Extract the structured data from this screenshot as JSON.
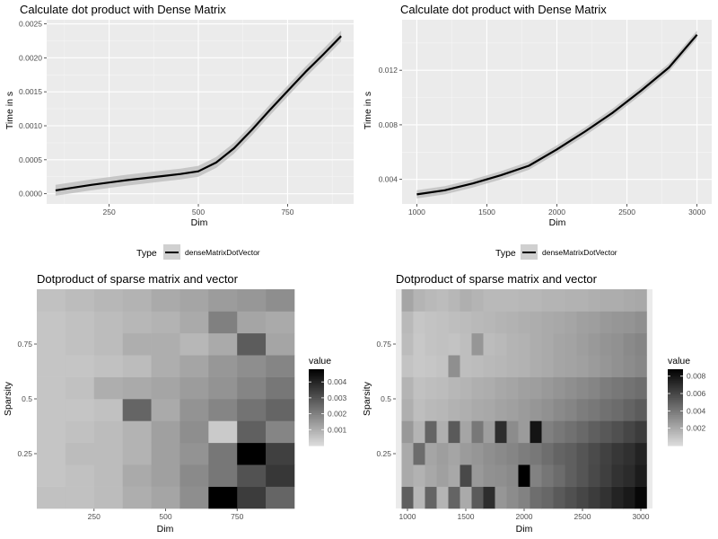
{
  "chart_data": [
    {
      "type": "line",
      "title": "Calculate dot product with Dense Matrix",
      "xlabel": "Dim",
      "ylabel": "Time in s",
      "xlim": [
        75,
        935
      ],
      "ylim": [
        -0.00015,
        0.00256
      ],
      "xticks": [
        250,
        500,
        750
      ],
      "yticks": [
        0,
        0.0005,
        0.001,
        0.0015,
        0.002,
        0.0025
      ],
      "ytick_labels": [
        "0.0000",
        "0.0005",
        "0.0010",
        "0.0015",
        "0.0020",
        "0.0025"
      ],
      "grid": true,
      "legend": {
        "title": "Type",
        "position": "bottom",
        "entries": [
          "denseMatrixDotVector"
        ]
      },
      "series": [
        {
          "name": "denseMatrixDotVector",
          "x": [
            100,
            200,
            300,
            400,
            450,
            500,
            550,
            600,
            650,
            700,
            750,
            800,
            850,
            900
          ],
          "y": [
            5e-05,
            0.00013,
            0.0002,
            0.00026,
            0.00029,
            0.00033,
            0.00046,
            0.00067,
            0.00094,
            0.00123,
            0.00151,
            0.00179,
            0.00205,
            0.00232
          ],
          "ci_halfwidth": 8e-05
        }
      ]
    },
    {
      "type": "line",
      "title": "Calculate dot product with Dense Matrix",
      "xlabel": "Dim",
      "ylabel": "Time in s",
      "xlim": [
        895,
        3105
      ],
      "ylim": [
        0.0022,
        0.0157
      ],
      "xticks": [
        1000,
        1500,
        2000,
        2500,
        3000
      ],
      "yticks": [
        0.004,
        0.008,
        0.012
      ],
      "ytick_labels": [
        "0.004",
        "0.008",
        "0.012"
      ],
      "grid": true,
      "legend": {
        "title": "Type",
        "position": "bottom",
        "entries": [
          "denseMatrixDotVector"
        ]
      },
      "series": [
        {
          "name": "denseMatrixDotVector",
          "x": [
            1000,
            1200,
            1400,
            1600,
            1800,
            2000,
            2200,
            2400,
            2600,
            2800,
            3000
          ],
          "y": [
            0.0029,
            0.0032,
            0.0037,
            0.0043,
            0.005,
            0.0062,
            0.0075,
            0.0089,
            0.0105,
            0.0122,
            0.0146
          ],
          "ci_halfwidth": 0.0003
        }
      ]
    },
    {
      "type": "heatmap",
      "title": "Dotproduct of sparse matrix and vector",
      "xlabel": "Dim",
      "ylabel": "Sparsity",
      "xlim": [
        50,
        950
      ],
      "ylim": [
        0,
        1
      ],
      "xticks": [
        250,
        500,
        750
      ],
      "yticks": [
        0.25,
        0.5,
        0.75
      ],
      "legend": {
        "title": "value",
        "position": "right",
        "breaks": [
          0.001,
          0.002,
          0.003,
          0.004
        ],
        "range": [
          0,
          0.0048
        ]
      },
      "x": [
        100,
        200,
        300,
        400,
        500,
        600,
        700,
        800,
        900
      ],
      "y": [
        0.05,
        0.15,
        0.25,
        0.35,
        0.45,
        0.55,
        0.65,
        0.75,
        0.85,
        0.95
      ],
      "values": [
        [
          0.0006,
          0.0006,
          0.0007,
          0.001,
          0.0012,
          0.0017,
          0.0048,
          0.0035,
          0.0026
        ],
        [
          0.0005,
          0.0006,
          0.0007,
          0.0011,
          0.0013,
          0.0018,
          0.0022,
          0.003,
          0.0036
        ],
        [
          0.0005,
          0.0007,
          0.0007,
          0.0009,
          0.0013,
          0.0016,
          0.0022,
          0.0048,
          0.0034
        ],
        [
          0.0005,
          0.0006,
          0.0007,
          0.0009,
          0.0013,
          0.0017,
          0.0004,
          0.0027,
          0.0019
        ],
        [
          0.0005,
          0.0005,
          0.0006,
          0.0026,
          0.0011,
          0.0016,
          0.0019,
          0.0023,
          0.0026
        ],
        [
          0.0005,
          0.0006,
          0.001,
          0.0011,
          0.0012,
          0.0014,
          0.0016,
          0.0019,
          0.0022
        ],
        [
          0.0005,
          0.0005,
          0.0006,
          0.0007,
          0.001,
          0.0012,
          0.0015,
          0.0017,
          0.0019
        ],
        [
          0.0005,
          0.0006,
          0.0007,
          0.001,
          0.001,
          0.0008,
          0.0011,
          0.0028,
          0.0012
        ],
        [
          0.0005,
          0.0006,
          0.0007,
          0.0008,
          0.0009,
          0.0011,
          0.002,
          0.0012,
          0.0011
        ],
        [
          0.0006,
          0.0007,
          0.0008,
          0.0009,
          0.0011,
          0.0012,
          0.0014,
          0.0015,
          0.0017
        ]
      ]
    },
    {
      "type": "heatmap",
      "title": "Dotproduct of sparse matrix and vector",
      "xlabel": "Dim",
      "ylabel": "Sparsity",
      "xlim": [
        900,
        3100
      ],
      "ylim": [
        0,
        1
      ],
      "xticks": [
        1000,
        1500,
        2000,
        2500,
        3000
      ],
      "yticks": [
        0.25,
        0.5,
        0.75
      ],
      "legend": {
        "title": "value",
        "position": "right",
        "breaks": [
          0.002,
          0.004,
          0.006,
          0.008
        ],
        "range": [
          0,
          0.0088
        ]
      },
      "x": [
        1000,
        1100,
        1200,
        1300,
        1400,
        1500,
        1600,
        1700,
        1800,
        1900,
        2000,
        2100,
        2200,
        2300,
        2400,
        2500,
        2600,
        2700,
        2800,
        2900,
        3000
      ],
      "y": [
        0.05,
        0.15,
        0.25,
        0.35,
        0.45,
        0.55,
        0.65,
        0.75,
        0.85,
        0.95
      ],
      "values": [
        [
          0.005,
          0.0015,
          0.0048,
          0.0016,
          0.0048,
          0.002,
          0.0052,
          0.007,
          0.0028,
          0.0032,
          0.0036,
          0.0044,
          0.0047,
          0.0052,
          0.0056,
          0.006,
          0.0064,
          0.0068,
          0.0074,
          0.0078,
          0.0085
        ],
        [
          0.002,
          0.0017,
          0.0021,
          0.0024,
          0.0021,
          0.0059,
          0.0027,
          0.003,
          0.0031,
          0.0033,
          0.0088,
          0.0036,
          0.0041,
          0.0045,
          0.005,
          0.0054,
          0.0059,
          0.0063,
          0.0068,
          0.0071,
          0.0077
        ],
        [
          0.002,
          0.0045,
          0.0022,
          0.0025,
          0.0022,
          0.0026,
          0.0028,
          0.0031,
          0.0033,
          0.0035,
          0.0038,
          0.004,
          0.0044,
          0.0048,
          0.005,
          0.0054,
          0.0058,
          0.0062,
          0.0066,
          0.0069,
          0.0074
        ],
        [
          0.0027,
          0.0016,
          0.0048,
          0.0018,
          0.0052,
          0.0022,
          0.004,
          0.0025,
          0.007,
          0.0032,
          0.0026,
          0.008,
          0.0037,
          0.004,
          0.0043,
          0.0046,
          0.005,
          0.0053,
          0.0056,
          0.006,
          0.0064
        ],
        [
          0.0018,
          0.0012,
          0.0014,
          0.0015,
          0.0017,
          0.0018,
          0.002,
          0.0021,
          0.0023,
          0.0024,
          0.0026,
          0.0028,
          0.003,
          0.0033,
          0.0035,
          0.0038,
          0.004,
          0.0043,
          0.0045,
          0.0048,
          0.0051
        ],
        [
          0.0016,
          0.0011,
          0.0012,
          0.0013,
          0.0015,
          0.0016,
          0.0018,
          0.0019,
          0.0021,
          0.0022,
          0.0024,
          0.0025,
          0.0027,
          0.0029,
          0.0031,
          0.0033,
          0.0035,
          0.0038,
          0.004,
          0.0042,
          0.0044
        ],
        [
          0.001,
          0.0008,
          0.0009,
          0.001,
          0.0031,
          0.0012,
          0.0013,
          0.0014,
          0.0015,
          0.0016,
          0.0017,
          0.0019,
          0.002,
          0.0022,
          0.0023,
          0.0024,
          0.0026,
          0.0028,
          0.003,
          0.0032,
          0.0034
        ],
        [
          0.0013,
          0.0008,
          0.001,
          0.0011,
          0.001,
          0.0012,
          0.0028,
          0.0013,
          0.0014,
          0.0016,
          0.0017,
          0.0019,
          0.002,
          0.0022,
          0.0023,
          0.0025,
          0.0027,
          0.0029,
          0.003,
          0.0033,
          0.0035
        ],
        [
          0.0014,
          0.0009,
          0.001,
          0.0011,
          0.0012,
          0.0013,
          0.0014,
          0.0015,
          0.0016,
          0.0017,
          0.0018,
          0.0019,
          0.002,
          0.0021,
          0.0022,
          0.0024,
          0.0025,
          0.0027,
          0.0028,
          0.0029,
          0.0031
        ],
        [
          0.0022,
          0.0016,
          0.0014,
          0.0013,
          0.0015,
          0.0018,
          0.0016,
          0.0014,
          0.0014,
          0.0014,
          0.0015,
          0.0015,
          0.0016,
          0.0016,
          0.0017,
          0.0017,
          0.0018,
          0.0019,
          0.0019,
          0.002,
          0.0021
        ]
      ]
    }
  ]
}
